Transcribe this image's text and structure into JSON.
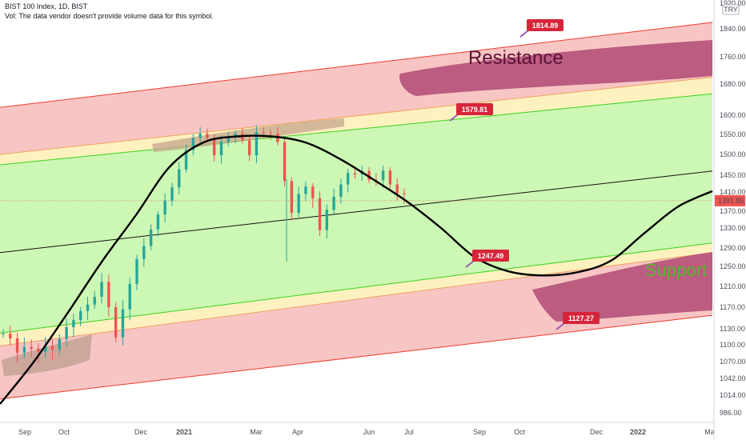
{
  "header": {
    "title": "BIST 100 Index, 1D, BIST",
    "volume_note": "Vol: The data vendor doesn't provide volume data for this symbol."
  },
  "currency_badge": "TRY",
  "colors": {
    "red_zone": "#f7c6c4",
    "red_line": "#ef3b2c",
    "yellow_zone": "#fdf1c0",
    "green_zone": "#cdf7b4",
    "green_line": "#39d11f",
    "mid_line": "#111111",
    "candle_up": "#26a69a",
    "candle_down": "#ef5350",
    "tag": "#d6253a",
    "marker": "#b5527a",
    "support_text": "#55b82b",
    "resistance_text": "#5a1038",
    "price_badge": "#ef5350"
  },
  "chart_data": {
    "type": "line",
    "title": "BIST 100 Index, 1D, BIST",
    "current_price": "1391.86",
    "y_ticks": [
      "1920.00",
      "1840.00",
      "1760.00",
      "1680.00",
      "1600.00",
      "1550.00",
      "1500.00",
      "1450.00",
      "1410.00",
      "1370.00",
      "1330.00",
      "1290.00",
      "1250.00",
      "1210.00",
      "1170.00",
      "1130.00",
      "1100.00",
      "1070.00",
      "1042.00",
      "1014.00",
      "986.00"
    ],
    "x_ticks": [
      "Sep",
      "Oct",
      "Dec",
      "2021",
      "Mar",
      "Apr",
      "Jun",
      "Jul",
      "Sep",
      "Oct",
      "Dec",
      "2022",
      "Mar"
    ],
    "channel": {
      "outer_upper_start": 1620,
      "outer_upper_end": 1860,
      "inner_upper_start": 1500,
      "inner_upper_end": 1700,
      "mid_upper_start": 1475,
      "mid_upper_end": 1655,
      "center_start": 1280,
      "center_end": 1460,
      "mid_lower_start": 1122,
      "mid_lower_end": 1300,
      "inner_lower_start": 1098,
      "inner_lower_end": 1280,
      "outer_lower_start": 1008,
      "outer_lower_end": 1155
    },
    "price_labels": [
      "1814.89",
      "1579.81",
      "1247.49",
      "1127.27"
    ],
    "annotations": [
      "Resistance",
      "Support"
    ],
    "wave_curve": {
      "y": [
        1000,
        1070,
        1160,
        1260,
        1360,
        1470,
        1530,
        1545,
        1545,
        1530,
        1490,
        1440,
        1390,
        1330,
        1270,
        1240,
        1232,
        1238,
        1262,
        1320,
        1380,
        1412
      ]
    },
    "price_series": {
      "close": [
        1121,
        1112,
        1086,
        1096,
        1093,
        1088,
        1098,
        1091,
        1111,
        1133,
        1146,
        1163,
        1175,
        1190,
        1219,
        1170,
        1114,
        1166,
        1215,
        1266,
        1294,
        1327,
        1362,
        1392,
        1421,
        1464,
        1511,
        1541,
        1552,
        1541,
        1498,
        1532,
        1545,
        1552,
        1536,
        1498,
        1555,
        1553,
        1552,
        1531,
        1436,
        1366,
        1406,
        1423,
        1397,
        1326,
        1373,
        1400,
        1428,
        1455,
        1452,
        1460,
        1439,
        1438,
        1461,
        1428,
        1407,
        1405
      ]
    }
  }
}
